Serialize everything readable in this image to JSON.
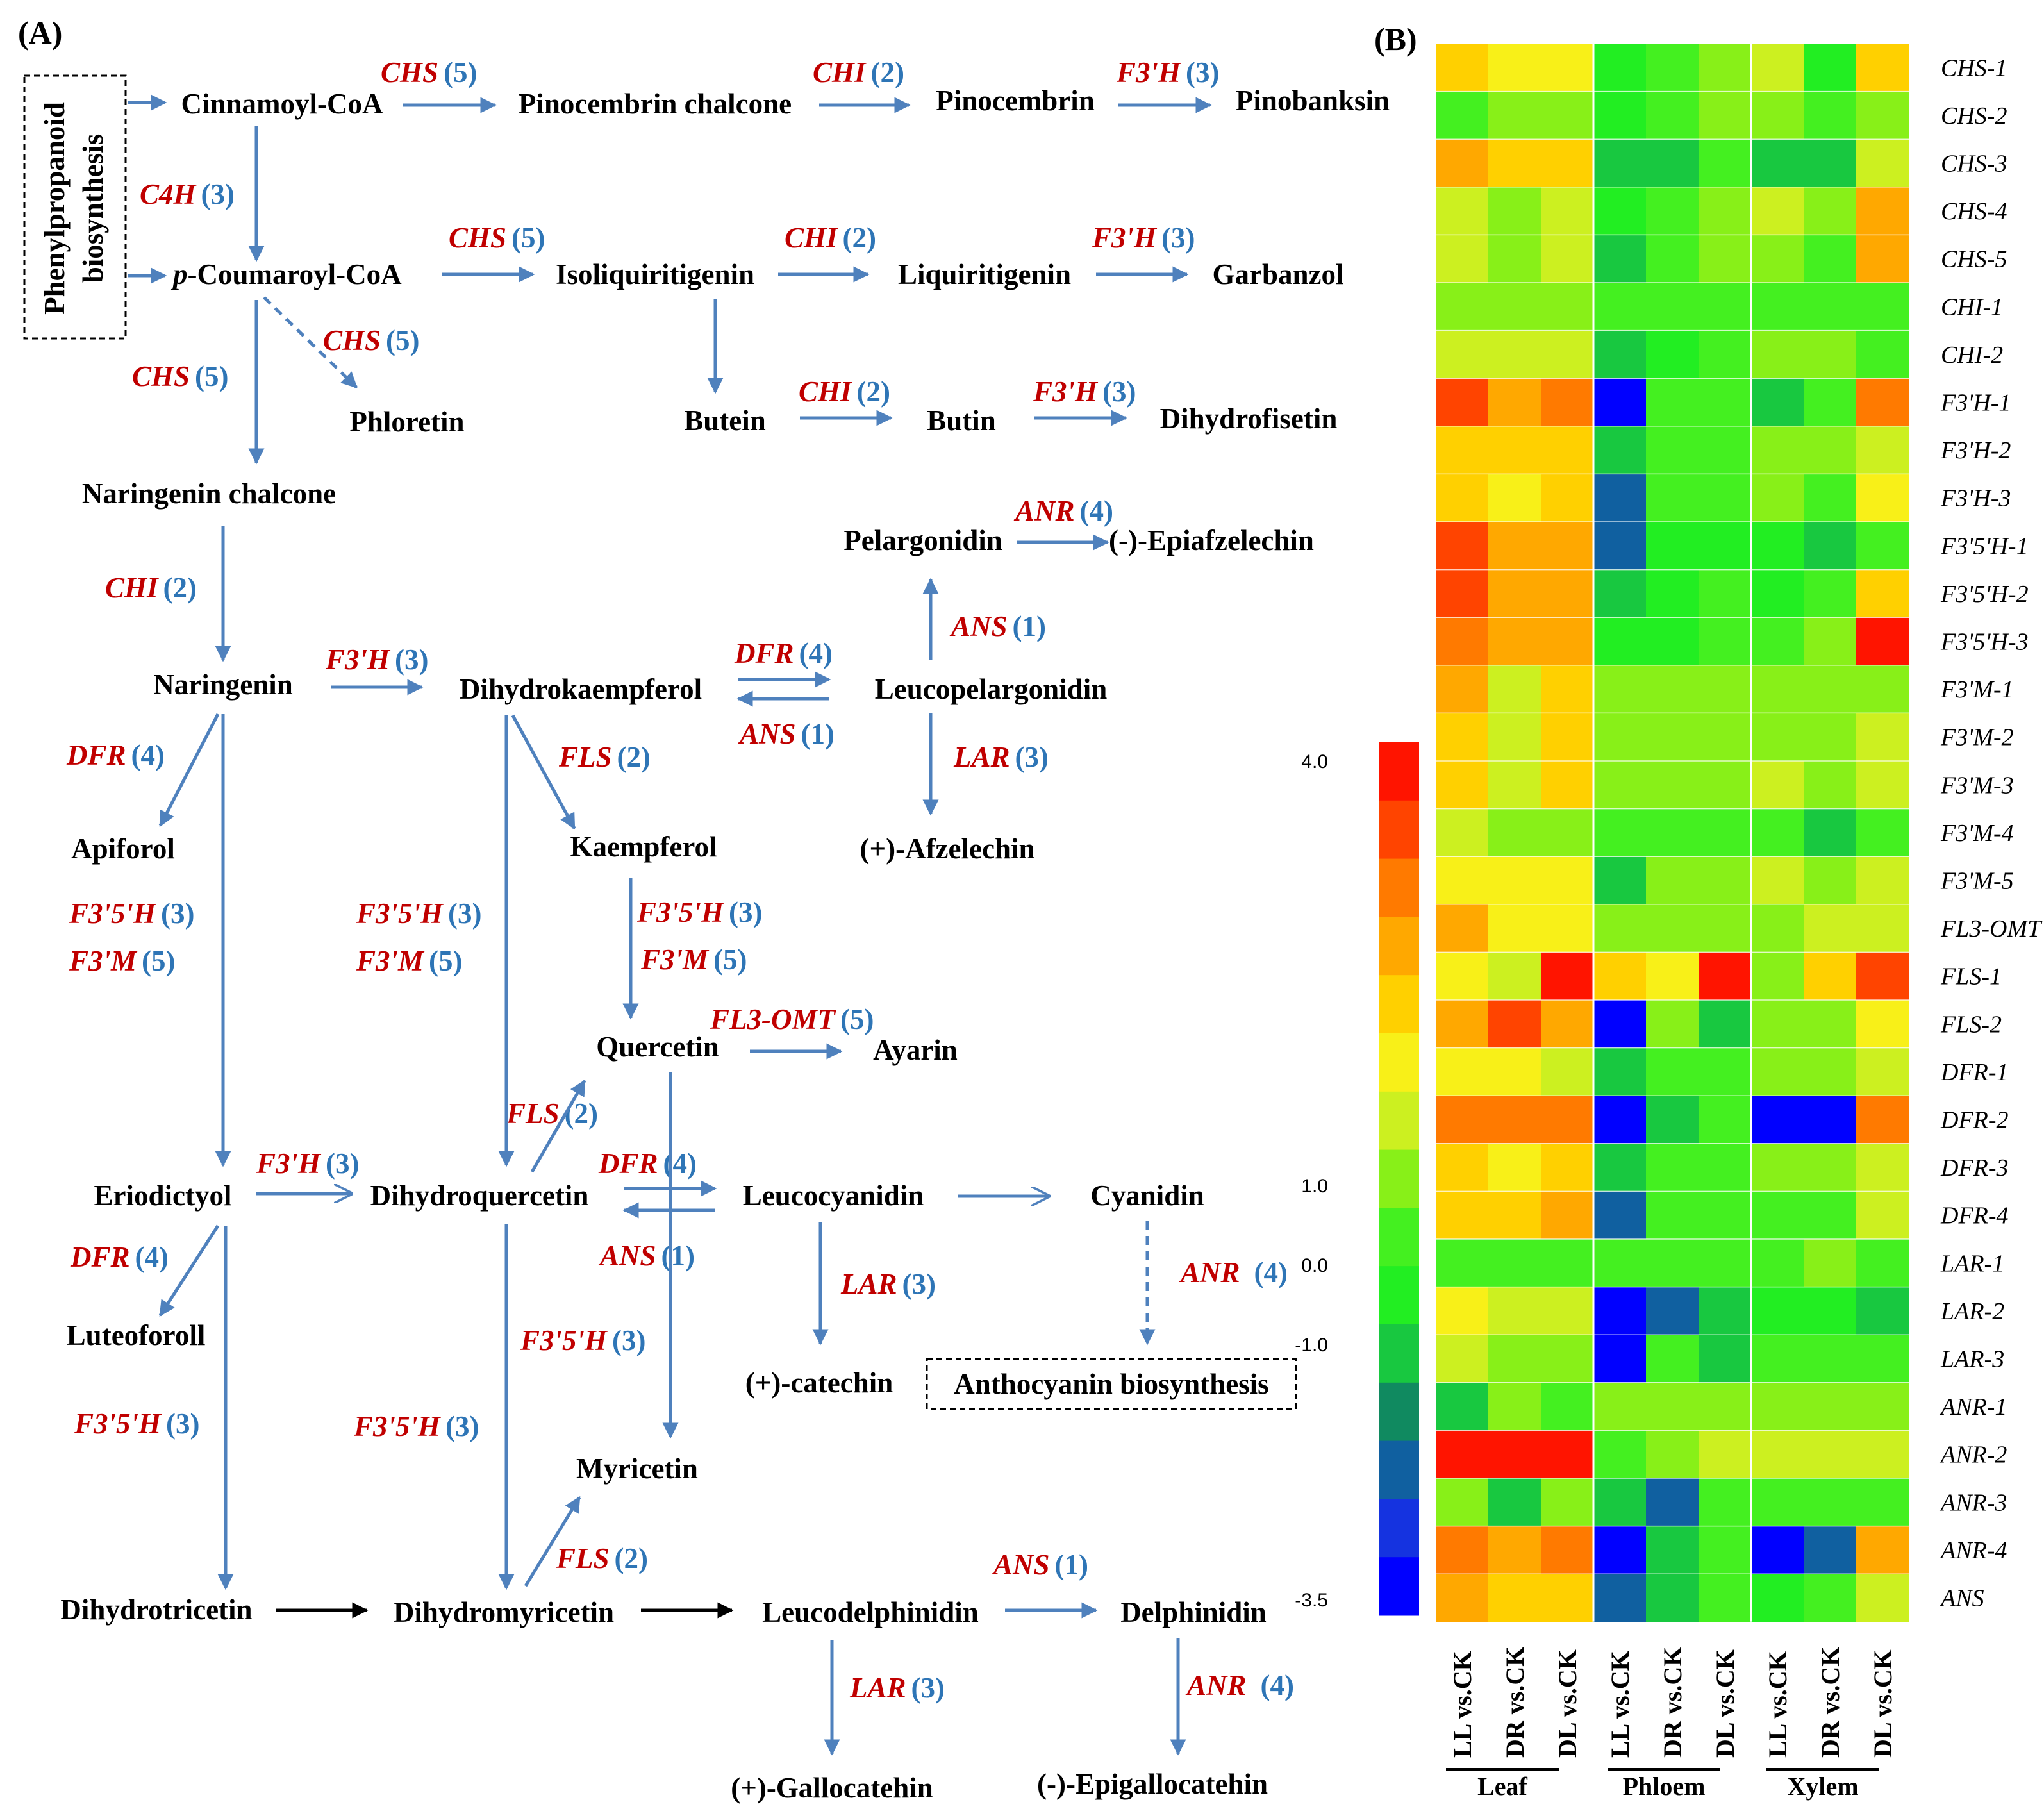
{
  "panel_a": {
    "label": "(A)",
    "box_phenyl": "Phenylpropanoid biosynthesis",
    "box_phenyl_lines": [
      "Phenylpropanoid",
      "biosynthesis"
    ],
    "box_antho": "Anthocyanin biosynthesis",
    "p_prefix": "p",
    "metabolites": {
      "cinnamoyl": "Cinnamoyl-CoA",
      "pinocembrin_chalcone": "Pinocembrin chalcone",
      "pinocembrin": "Pinocembrin",
      "pinobanksin": "Pinobanksin",
      "coumaroyl": "-Coumaroyl-CoA",
      "isoliquiritigenin": "Isoliquiritigenin",
      "liquiritigenin": "Liquiritigenin",
      "garbanzol": "Garbanzol",
      "phloretin": "Phloretin",
      "butein": "Butein",
      "butin": "Butin",
      "dihydrofisetin": "Dihydrofisetin",
      "naringenin_chalcone": "Naringenin chalcone",
      "pelargonidin": "Pelargonidin",
      "epiafzelechin": "(-)-Epiafzelechin",
      "naringenin": "Naringenin",
      "dihydrokaempferol": "Dihydrokaempferol",
      "leucopelargonidin": "Leucopelargonidin",
      "apiforol": "Apiforol",
      "kaempferol": "Kaempferol",
      "afzelechin": "(+)-Afzelechin",
      "quercetin": "Quercetin",
      "ayarin": "Ayarin",
      "eriodictyol": "Eriodictyol",
      "dihydroquercetin": "Dihydroquercetin",
      "leucocyanidin": "Leucocyanidin",
      "cyanidin": "Cyanidin",
      "luteoforoll": "Luteoforoll",
      "catechin": "(+)-catechin",
      "myricetin": "Myricetin",
      "dihydrotricetin": "Dihydrotricetin",
      "dihydromyricetin": "Dihydromyricetin",
      "leucodelphinidin": "Leucodelphinidin",
      "delphinidin": "Delphinidin",
      "gallocatechin": "(+)-Gallocatehin",
      "epigallocatechin": "(-)-Epigallocatehin"
    },
    "enzymes": [
      {
        "name": "CHS",
        "count": "(5)"
      },
      {
        "name": "CHI",
        "count": "(2)"
      },
      {
        "name": "F3'H",
        "count": "(3)"
      },
      {
        "name": "C4H",
        "count": "(3)"
      },
      {
        "name": "CHS",
        "count": "(5)"
      },
      {
        "name": "CHI",
        "count": "(2)"
      },
      {
        "name": "F3'H",
        "count": "(3)"
      },
      {
        "name": "CHS",
        "count": "(5)"
      },
      {
        "name": "CHS",
        "count": "(5)"
      },
      {
        "name": "CHI",
        "count": "(2)"
      },
      {
        "name": "F3'H",
        "count": "(3)"
      },
      {
        "name": "ANR",
        "count": "(4)"
      },
      {
        "name": "CHI",
        "count": "(2)"
      },
      {
        "name": "ANS",
        "count": "(1)"
      },
      {
        "name": "F3'H",
        "count": "(3)"
      },
      {
        "name": "DFR",
        "count": "(4)"
      },
      {
        "name": "ANS",
        "count": "(1)"
      },
      {
        "name": "DFR",
        "count": "(4)"
      },
      {
        "name": "FLS",
        "count": "(2)"
      },
      {
        "name": "LAR",
        "count": "(3)"
      },
      {
        "name": "F3'5'H",
        "count": "(3)"
      },
      {
        "name": "F3'M",
        "count": "(5)"
      },
      {
        "name": "F3'5'H",
        "count": "(3)"
      },
      {
        "name": "F3'M",
        "count": "(5)"
      },
      {
        "name": "F3'5'H",
        "count": "(3)"
      },
      {
        "name": "F3'M",
        "count": "(5)"
      },
      {
        "name": "FL3-OMT",
        "count": "(5)"
      },
      {
        "name": "FLS",
        "count": "(2)"
      },
      {
        "name": "F3'H",
        "count": "(3)"
      },
      {
        "name": "DFR",
        "count": "(4)"
      },
      {
        "name": "DFR",
        "count": "(4)"
      },
      {
        "name": "ANS",
        "count": "(1)"
      },
      {
        "name": "ANR",
        "count": "(4)"
      },
      {
        "name": "LAR",
        "count": "(3)"
      },
      {
        "name": "F3'5'H",
        "count": "(3)"
      },
      {
        "name": "F3'5'H",
        "count": "(3)"
      },
      {
        "name": "F3'5'H",
        "count": "(3)"
      },
      {
        "name": "FLS",
        "count": "(2)"
      },
      {
        "name": "ANS",
        "count": "(1)"
      },
      {
        "name": "LAR",
        "count": "(3)"
      },
      {
        "name": "ANR",
        "count": "(4)"
      }
    ]
  },
  "panel_b": {
    "label": "(B)",
    "scale_labels": [
      "4.0",
      "1.0",
      "0.0",
      "-1.0",
      "-3.5"
    ],
    "groups": [
      "Leaf",
      "Phloem",
      "Xylem"
    ]
  },
  "chart_data": {
    "type": "heatmap",
    "title": "",
    "columns": [
      "LL vs.CK",
      "DR vs.CK",
      "DL vs.CK",
      "LL vs.CK",
      "DR vs.CK",
      "DL vs.CK",
      "LL vs.CK",
      "DR vs.CK",
      "DL vs.CK"
    ],
    "column_groups": [
      {
        "name": "Leaf",
        "columns": [
          0,
          1,
          2
        ]
      },
      {
        "name": "Phloem",
        "columns": [
          3,
          4,
          5
        ]
      },
      {
        "name": "Xylem",
        "columns": [
          6,
          7,
          8
        ]
      }
    ],
    "rows": [
      "CHS-1",
      "CHS-2",
      "CHS-3",
      "CHS-4",
      "CHS-5",
      "CHI-1",
      "CHI-2",
      "F3'H-1",
      "F3'H-2",
      "F3'H-3",
      "F3'5'H-1",
      "F3'5'H-2",
      "F3'5'H-3",
      "F3'M-1",
      "F3'M-2",
      "F3'M-3",
      "F3'M-4",
      "F3'M-5",
      "FL3-OMT",
      "FLS-1",
      "FLS-2",
      "DFR-1",
      "DFR-2",
      "DFR-3",
      "DFR-4",
      "LAR-1",
      "LAR-2",
      "LAR-3",
      "ANR-1",
      "ANR-2",
      "ANR-3",
      "ANR-4",
      "ANS"
    ],
    "color_scale": {
      "min": -3.5,
      "max": 4.0,
      "ticks": [
        4.0,
        1.0,
        0.0,
        -1.0,
        -3.5
      ],
      "colors": [
        "#0000ff",
        "#1533e0",
        "#1060a0",
        "#108a60",
        "#18c840",
        "#22ee22",
        "#44f020",
        "#88f018",
        "#ccf020",
        "#f8f018",
        "#ffd000",
        "#ffa800",
        "#ff7a00",
        "#ff4400",
        "#ff1400"
      ]
    },
    "values": [
      [
        1.5,
        1.2,
        1.2,
        -0.8,
        -0.2,
        0.0,
        0.5,
        -1.0,
        1.8
      ],
      [
        -0.2,
        0.3,
        0.1,
        -0.8,
        -0.3,
        0.0,
        0.0,
        -0.3,
        0.3
      ],
      [
        2.2,
        1.5,
        1.5,
        -1.5,
        -1.5,
        -0.3,
        -1.5,
        -1.5,
        0.5
      ],
      [
        0.5,
        0.4,
        0.5,
        -0.8,
        -0.2,
        0.0,
        0.5,
        0.0,
        2.0
      ],
      [
        0.5,
        0.4,
        0.5,
        -1.2,
        -0.3,
        0.0,
        0.3,
        -0.5,
        2.0
      ],
      [
        0.2,
        0.2,
        0.1,
        -0.5,
        -0.5,
        -0.5,
        -0.3,
        -0.3,
        -0.3
      ],
      [
        0.8,
        0.5,
        0.5,
        -1.5,
        -0.8,
        -0.3,
        0.0,
        0.0,
        -0.2
      ],
      [
        3.0,
        2.0,
        2.7,
        -3.5,
        -0.5,
        -0.3,
        -1.5,
        -0.5,
        2.6
      ],
      [
        1.8,
        1.5,
        1.9,
        -1.5,
        -0.5,
        -0.3,
        0.0,
        0.0,
        0.8
      ],
      [
        1.8,
        1.2,
        1.9,
        -2.2,
        -0.5,
        -0.5,
        0.0,
        -0.3,
        1.0
      ],
      [
        3.0,
        2.0,
        2.0,
        -2.2,
        -0.8,
        -0.8,
        -0.8,
        -1.5,
        -0.5
      ],
      [
        3.0,
        2.0,
        2.0,
        -1.5,
        -0.8,
        -0.3,
        -0.8,
        -0.2,
        1.8
      ],
      [
        2.6,
        2.0,
        2.0,
        -0.8,
        -0.8,
        -0.3,
        -0.3,
        0.2,
        3.9
      ],
      [
        2.0,
        0.8,
        1.5,
        0.0,
        0.0,
        0.0,
        0.2,
        0.0,
        0.3
      ],
      [
        1.5,
        0.5,
        1.5,
        0.2,
        0.2,
        0.0,
        0.3,
        0.0,
        0.5
      ],
      [
        1.5,
        0.5,
        1.5,
        0.2,
        0.2,
        0.0,
        0.8,
        0.3,
        0.5
      ],
      [
        0.5,
        0.3,
        0.3,
        -0.3,
        -0.5,
        -0.5,
        -0.3,
        -1.2,
        -0.5
      ],
      [
        1.0,
        1.0,
        1.0,
        -1.2,
        0.0,
        0.0,
        0.8,
        0.0,
        0.5
      ],
      [
        2.0,
        1.2,
        1.3,
        0.0,
        0.0,
        0.0,
        0.2,
        0.5,
        0.5
      ],
      [
        1.0,
        0.5,
        3.5,
        1.5,
        1.2,
        3.5,
        0.3,
        1.5,
        3.2
      ],
      [
        2.0,
        3.0,
        2.0,
        -3.5,
        0.0,
        -1.5,
        0.0,
        0.0,
        1.0
      ],
      [
        1.0,
        1.0,
        0.8,
        -1.2,
        -0.3,
        -0.3,
        0.0,
        0.0,
        0.5
      ],
      [
        2.5,
        2.5,
        2.9,
        -3.2,
        -1.5,
        -0.3,
        -3.5,
        -3.5,
        2.5
      ],
      [
        1.8,
        1.2,
        1.5,
        -1.5,
        -0.3,
        -0.3,
        0.3,
        0.0,
        0.5
      ],
      [
        1.8,
        1.5,
        2.0,
        -2.2,
        -0.5,
        -0.5,
        -0.3,
        -0.3,
        0.5
      ],
      [
        -0.5,
        -0.2,
        -0.5,
        -0.3,
        -0.3,
        -0.3,
        -0.3,
        0.0,
        -0.3
      ],
      [
        1.0,
        0.5,
        0.5,
        -3.5,
        -2.2,
        -1.2,
        -0.8,
        -0.8,
        -1.5
      ],
      [
        0.5,
        0.3,
        0.3,
        -3.5,
        -0.5,
        -1.2,
        -0.3,
        -0.3,
        -0.5
      ],
      [
        -1.5,
        0.0,
        -0.5,
        0.0,
        0.0,
        0.0,
        0.0,
        0.0,
        0.0
      ],
      [
        3.9,
        3.9,
        3.9,
        -0.5,
        0.2,
        0.5,
        0.5,
        0.5,
        0.5
      ],
      [
        0.3,
        -1.5,
        0.0,
        -1.5,
        -2.2,
        -0.5,
        -0.5,
        -0.5,
        -0.5
      ],
      [
        2.9,
        2.2,
        2.9,
        -3.2,
        -1.5,
        -0.3,
        -3.5,
        -2.2,
        2.2
      ],
      [
        2.2,
        1.5,
        1.9,
        -2.2,
        -1.5,
        -0.3,
        -0.8,
        -0.3,
        0.8
      ]
    ]
  }
}
